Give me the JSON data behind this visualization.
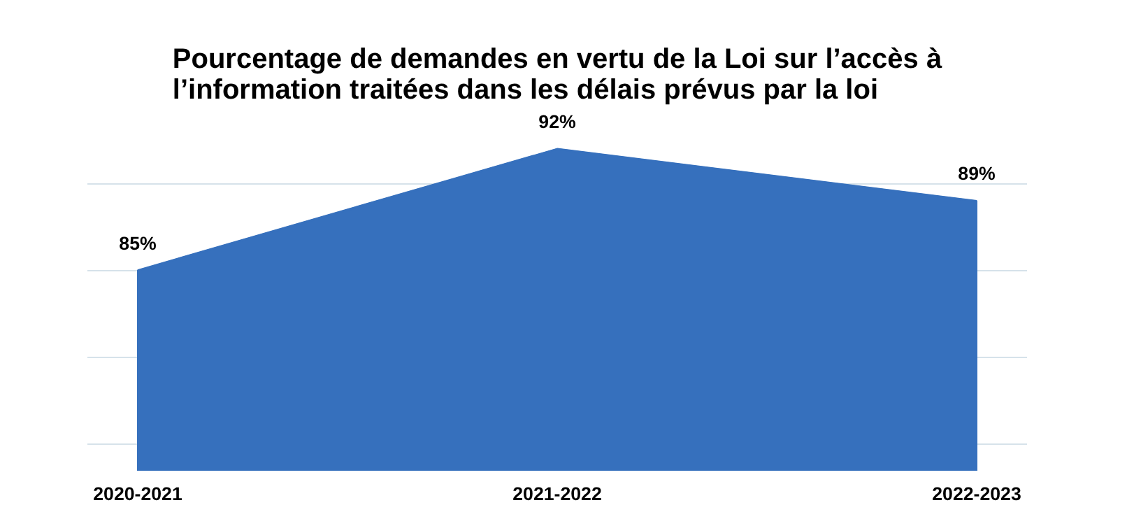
{
  "chart_data": {
    "type": "area",
    "title": "Pourcentage de demandes en vertu de la Loi sur l’accès à\nl’information traitées dans les délais prévus par la loi",
    "categories": [
      "2020-2021",
      "2021-2022",
      "2022-2023"
    ],
    "color": "#3670bd",
    "values": [
      85,
      92,
      89
    ],
    "grid": "y",
    "tick_labels": "x",
    "value_labels": [
      "85%",
      "92%",
      "89%"
    ]
  }
}
